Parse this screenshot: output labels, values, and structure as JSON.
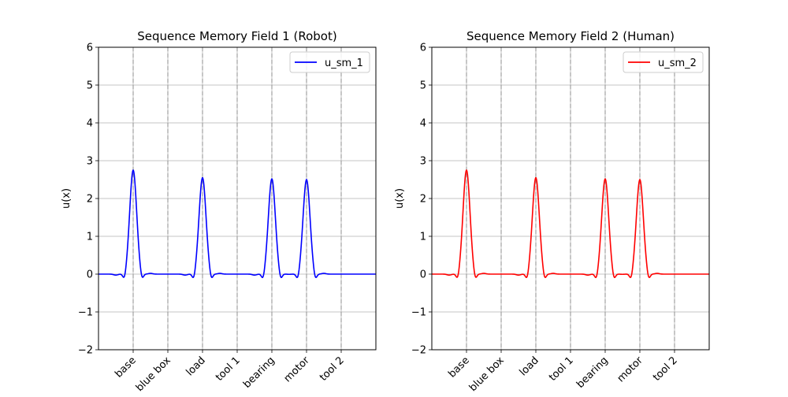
{
  "chart_data": [
    {
      "type": "line",
      "title": "Sequence Memory Field 1 (Robot)",
      "xlabel": "",
      "ylabel": "u(x)",
      "ylim": [
        -2,
        6
      ],
      "yticks": [
        -2,
        -1,
        0,
        1,
        2,
        3,
        4,
        5,
        6
      ],
      "ytick_labels": [
        "−2",
        "−1",
        "0",
        "1",
        "2",
        "3",
        "4",
        "5",
        "6"
      ],
      "xlim": [
        0,
        80
      ],
      "xticks": [
        10,
        20,
        30,
        40,
        50,
        60,
        70
      ],
      "xtick_labels": [
        "base",
        "blue box",
        "load",
        "tool 1",
        "bearing",
        "motor",
        "tool 2"
      ],
      "grid": true,
      "legend_position": "top-right",
      "series": [
        {
          "name": "u_sm_1",
          "color": "#0000ff",
          "peaks": [
            {
              "x": 10,
              "amplitude": 2.75
            },
            {
              "x": 30,
              "amplitude": 2.55
            },
            {
              "x": 50,
              "amplitude": 2.52
            },
            {
              "x": 60,
              "amplitude": 2.5
            }
          ],
          "baseline": 0,
          "undershoot": -0.17
        }
      ]
    },
    {
      "type": "line",
      "title": "Sequence Memory Field 2 (Human)",
      "xlabel": "",
      "ylabel": "u(x)",
      "ylim": [
        -2,
        6
      ],
      "yticks": [
        -2,
        -1,
        0,
        1,
        2,
        3,
        4,
        5,
        6
      ],
      "ytick_labels": [
        "−2",
        "−1",
        "0",
        "1",
        "2",
        "3",
        "4",
        "5",
        "6"
      ],
      "xlim": [
        0,
        80
      ],
      "xticks": [
        10,
        20,
        30,
        40,
        50,
        60,
        70
      ],
      "xtick_labels": [
        "base",
        "blue box",
        "load",
        "tool 1",
        "bearing",
        "motor",
        "tool 2"
      ],
      "grid": true,
      "legend_position": "top-right",
      "series": [
        {
          "name": "u_sm_2",
          "color": "#ff0000",
          "peaks": [
            {
              "x": 10,
              "amplitude": 2.75
            },
            {
              "x": 30,
              "amplitude": 2.55
            },
            {
              "x": 50,
              "amplitude": 2.52
            },
            {
              "x": 60,
              "amplitude": 2.5
            }
          ],
          "baseline": 0,
          "undershoot": -0.17
        }
      ]
    }
  ]
}
